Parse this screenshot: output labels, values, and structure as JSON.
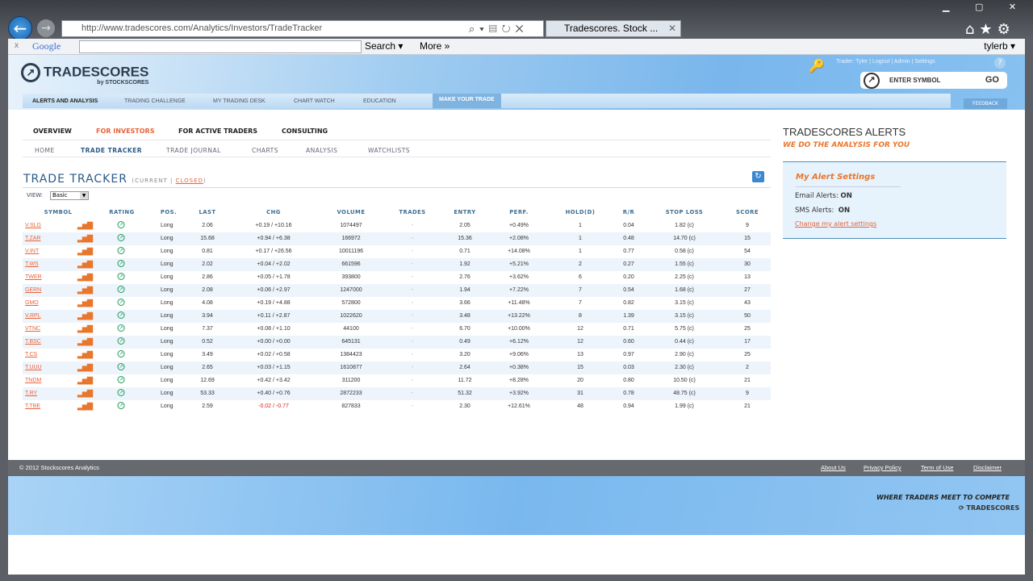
{
  "browser": {
    "url": "http://www.tradescores.com/Analytics/Investors/TradeTracker",
    "tab_title": "Tradescores. Stock ...",
    "google_label": "Google",
    "search_label": "Search ▾",
    "more_label": "More »",
    "user": "tylerb ▾"
  },
  "site": {
    "logo": "TRADESCORES",
    "logo_sub": "by STOCKSCORES",
    "nav": [
      "ALERTS AND ANALYSIS",
      "TRADING CHALLENGE",
      "MY TRADING DESK",
      "CHART WATCH",
      "EDUCATION"
    ],
    "make_trade": "MAKE YOUR TRADE",
    "top_links": "Trader: Tyler  |  Logout  |  Admin  |  Settings",
    "symbol_placeholder": "ENTER SYMBOL",
    "go": "GO",
    "feedback": "FEEDBACK"
  },
  "menu1": [
    "OVERVIEW",
    "FOR INVESTORS",
    "FOR ACTIVE TRADERS",
    "CONSULTING"
  ],
  "menu2": [
    "HOME",
    "TRADE TRACKER",
    "TRADE JOURNAL",
    "CHARTS",
    "ANALYSIS",
    "WATCHLISTS"
  ],
  "tracker": {
    "title": "TRADE TRACKER",
    "current": "(CURRENT | ",
    "closed": "CLOSED",
    "close_paren": ")",
    "view_label": "VIEW:",
    "view_value": "Basic",
    "columns": [
      "SYMBOL",
      "RATING",
      "POS.",
      "LAST",
      "CHG",
      "VOLUME",
      "TRADES",
      "ENTRY",
      "PERF.",
      "HOLD(D)",
      "R/R",
      "STOP LOSS",
      "SCORE"
    ],
    "rows": [
      [
        "V.SLG",
        "Long",
        "2.06",
        "+0.19 / +10.16",
        "1074497",
        "-",
        "2.05",
        "+0.49%",
        "1",
        "0.04",
        "1.82 (c)",
        "9"
      ],
      [
        "T.ZAR",
        "Long",
        "15.68",
        "+0.94 / +6.38",
        "166972",
        "-",
        "15.36",
        "+2.08%",
        "1",
        "0.48",
        "14.70 (c)",
        "15"
      ],
      [
        "V.INT",
        "Long",
        "0.81",
        "+0.17 / +26.56",
        "10011196",
        "-",
        "0.71",
        "+14.08%",
        "1",
        "0.77",
        "0.58 (c)",
        "54"
      ],
      [
        "T.WS",
        "Long",
        "2.02",
        "+0.04 / +2.02",
        "661596",
        "-",
        "1.92",
        "+5.21%",
        "2",
        "0.27",
        "1.55 (c)",
        "30"
      ],
      [
        "TWER",
        "Long",
        "2.86",
        "+0.05 / +1.78",
        "393800",
        "-",
        "2.76",
        "+3.62%",
        "6",
        "0.20",
        "2.25 (c)",
        "13"
      ],
      [
        "GERN",
        "Long",
        "2.08",
        "+0.06 / +2.97",
        "1247000",
        "-",
        "1.94",
        "+7.22%",
        "7",
        "0.54",
        "1.68 (c)",
        "27"
      ],
      [
        "GMO",
        "Long",
        "4.08",
        "+0.19 / +4.88",
        "572800",
        "-",
        "3.66",
        "+11.48%",
        "7",
        "0.82",
        "3.15 (c)",
        "43"
      ],
      [
        "V.RPL",
        "Long",
        "3.94",
        "+0.11 / +2.87",
        "1022620",
        "-",
        "3.48",
        "+13.22%",
        "8",
        "1.39",
        "3.15 (c)",
        "50"
      ],
      [
        "VTNC",
        "Long",
        "7.37",
        "+0.08 / +1.10",
        "44100",
        "-",
        "6.70",
        "+10.00%",
        "12",
        "0.71",
        "5.75 (c)",
        "25"
      ],
      [
        "T.BSC",
        "Long",
        "0.52",
        "+0.00 / +0.00",
        "645131",
        "-",
        "0.49",
        "+6.12%",
        "12",
        "0.60",
        "0.44 (c)",
        "17"
      ],
      [
        "T.CS",
        "Long",
        "3.49",
        "+0.02 / +0.58",
        "1384423",
        "-",
        "3.20",
        "+9.06%",
        "13",
        "0.97",
        "2.90 (c)",
        "25"
      ],
      [
        "T.UUU",
        "Long",
        "2.65",
        "+0.03 / +1.15",
        "1610877",
        "-",
        "2.64",
        "+0.38%",
        "15",
        "0.03",
        "2.30 (c)",
        "2"
      ],
      [
        "TNDM",
        "Long",
        "12.69",
        "+0.42 / +3.42",
        "311200",
        "-",
        "11.72",
        "+8.28%",
        "20",
        "0.80",
        "10.50 (c)",
        "21"
      ],
      [
        "T.RY",
        "Long",
        "53.33",
        "+0.40 / +0.76",
        "2872233",
        "-",
        "51.32",
        "+3.92%",
        "31",
        "0.78",
        "48.75 (c)",
        "9"
      ],
      [
        "T.TBE",
        "Long",
        "2.59",
        "-0.02 / -0.77",
        "827833",
        "-",
        "2.30",
        "+12.61%",
        "48",
        "0.94",
        "1.99 (c)",
        "21"
      ]
    ]
  },
  "alerts": {
    "logo": "TRADESCORES ALERTS",
    "tagline": "WE DO THE ANALYSIS FOR YOU",
    "heading": "My Alert Settings",
    "email_label": "Email Alerts:",
    "email_value": "ON",
    "sms_label": "SMS Alerts:",
    "sms_value": "ON",
    "change_link": "Change my alert settings"
  },
  "footer": {
    "copyright": "© 2012 Stockscores Analytics",
    "links": [
      "About Us",
      "Privacy Policy",
      "Term of Use",
      "Disclaimer"
    ],
    "slogan": "WHERE TRADERS MEET TO COMPETE",
    "small_logo": "TRADESCORES"
  },
  "colors": {
    "accent": "#e8643a",
    "header_blue": "#79b6ec",
    "positive": "#333333",
    "negative": "#dd2222"
  }
}
